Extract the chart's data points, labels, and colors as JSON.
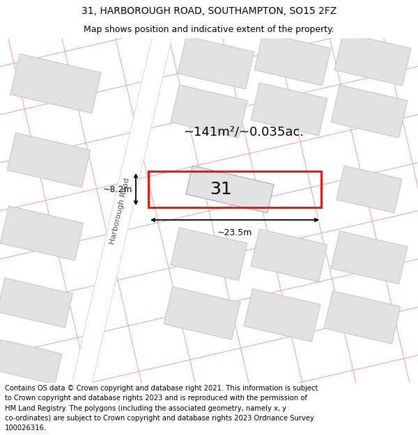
{
  "title_line1": "31, HARBOROUGH ROAD, SOUTHAMPTON, SO15 2FZ",
  "title_line2": "Map shows position and indicative extent of the property.",
  "footer_text": "Contains OS data © Crown copyright and database right 2021. This information is subject to Crown copyright and database rights 2023 and is reproduced with the permission of HM Land Registry. The polygons (including the associated geometry, namely x, y co-ordinates) are subject to Crown copyright and database rights 2023 Ordnance Survey 100026316.",
  "bg_color": "#f2f2f2",
  "map_bg_color": "#efefef",
  "road_color": "#ffffff",
  "grid_line_color": "#e8a0a0",
  "building_fill": "#e2e2e2",
  "building_edge": "#c8c8c8",
  "highlight_rect_color": "#ff0000",
  "highlight_rect_fill": "#ffffff",
  "road_label": "Harborough Road",
  "property_label": "31",
  "area_label": "~141m²/~0.035ac.",
  "width_label": "~23.5m",
  "height_label": "~8.2m",
  "title_fontsize": 10,
  "subtitle_fontsize": 9,
  "footer_fontsize": 7.2,
  "map_tilt_deg": -13
}
